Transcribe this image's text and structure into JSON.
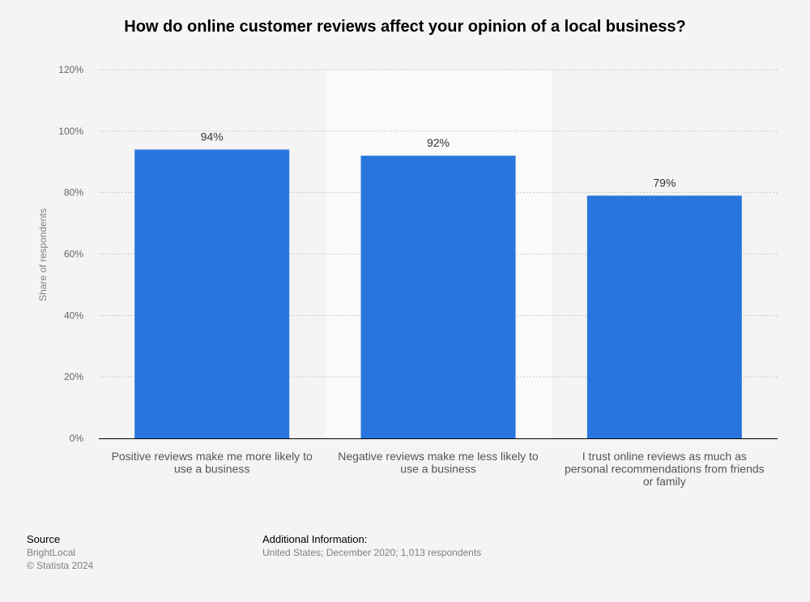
{
  "chart_data": {
    "type": "bar",
    "title": "How do online customer reviews affect your opinion of a local business?",
    "ylabel": "Share of respondents",
    "xlabel": "",
    "categories": [
      [
        "Positive reviews make me more likely to",
        "use a business"
      ],
      [
        "Negative reviews make me less likely to",
        "use a business"
      ],
      [
        "I trust online reviews as much as",
        "personal recommendations from friends",
        "or family"
      ]
    ],
    "values": [
      94,
      92,
      79
    ],
    "value_labels": [
      "94%",
      "92%",
      "79%"
    ],
    "ylim": [
      0,
      120
    ],
    "yticks": [
      0,
      20,
      40,
      60,
      80,
      100,
      120
    ],
    "ytick_labels": [
      "0%",
      "20%",
      "40%",
      "60%",
      "80%",
      "100%",
      "120%"
    ],
    "grid": true,
    "highlighted_category_index": 1,
    "colors": {
      "bar": "#2876dd",
      "grid": "#c8c8c8",
      "axis": "#000000",
      "highlight_band": "#fafafa"
    }
  },
  "footer": {
    "source_heading": "Source",
    "source_name": "BrightLocal",
    "copyright": "© Statista 2024",
    "info_heading": "Additional Information:",
    "info_text": "United States; December 2020; 1,013 respondents"
  }
}
